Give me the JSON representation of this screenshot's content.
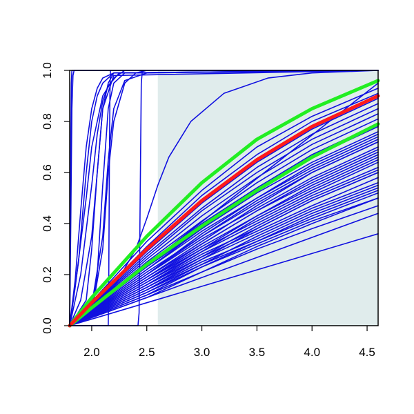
{
  "chart_data": {
    "type": "line",
    "title": "",
    "xlabel": "",
    "ylabel": "",
    "xlim": [
      1.8,
      4.6
    ],
    "ylim": [
      0.0,
      1.0
    ],
    "x_ticks": [
      2.0,
      2.5,
      3.0,
      3.5,
      4.0,
      4.5
    ],
    "x_tick_labels": [
      "2.0",
      "2.5",
      "3.0",
      "3.5",
      "4.0",
      "4.5"
    ],
    "y_ticks": [
      0.0,
      0.2,
      0.4,
      0.6,
      0.8,
      1.0
    ],
    "y_tick_labels": [
      "0.0",
      "0.2",
      "0.4",
      "0.6",
      "0.8",
      "1.0"
    ],
    "grid": false,
    "legend": "none",
    "shaded_region": {
      "x_from": 2.6,
      "x_to": 4.6,
      "color": "#e0ecec"
    },
    "colors": {
      "samples": "#1010e0",
      "median": "#ff1a1a",
      "bounds": "#22ee22",
      "shade": "#e0ecec"
    },
    "series": [
      {
        "role": "median",
        "x": [
          1.8,
          2.0,
          2.5,
          3.0,
          3.5,
          4.0,
          4.6
        ],
        "y": [
          0.0,
          0.09,
          0.3,
          0.49,
          0.65,
          0.78,
          0.9
        ]
      },
      {
        "role": "bound",
        "x": [
          1.8,
          2.0,
          2.5,
          3.0,
          3.5,
          4.0,
          4.6
        ],
        "y": [
          0.0,
          0.11,
          0.35,
          0.56,
          0.73,
          0.85,
          0.96
        ]
      },
      {
        "role": "bound",
        "x": [
          1.8,
          2.0,
          2.5,
          3.0,
          3.5,
          4.0,
          4.6
        ],
        "y": [
          0.0,
          0.07,
          0.24,
          0.39,
          0.53,
          0.66,
          0.79
        ]
      },
      {
        "role": "sample",
        "x": [
          1.8,
          1.805,
          1.81,
          1.815,
          1.82,
          1.83,
          4.6
        ],
        "y": [
          0.0,
          0.3,
          0.7,
          0.95,
          1.0,
          1.0,
          1.0
        ]
      },
      {
        "role": "sample",
        "x": [
          1.8,
          1.81,
          1.82,
          1.83,
          1.84,
          4.6
        ],
        "y": [
          0.0,
          0.4,
          0.85,
          0.98,
          1.0,
          1.0
        ]
      },
      {
        "role": "sample",
        "x": [
          1.8,
          1.85,
          1.9,
          1.95,
          2.0,
          2.05,
          2.1,
          2.2,
          4.6
        ],
        "y": [
          0.0,
          0.18,
          0.45,
          0.7,
          0.85,
          0.93,
          0.97,
          0.99,
          1.0
        ]
      },
      {
        "role": "sample",
        "x": [
          1.8,
          1.88,
          1.95,
          2.0,
          2.05,
          2.1,
          2.2,
          4.6
        ],
        "y": [
          0.0,
          0.25,
          0.6,
          0.8,
          0.9,
          0.95,
          0.99,
          1.0
        ]
      },
      {
        "role": "sample",
        "x": [
          1.8,
          1.9,
          2.0,
          2.05,
          2.1,
          2.15,
          2.25,
          4.6
        ],
        "y": [
          0.0,
          0.2,
          0.55,
          0.75,
          0.88,
          0.94,
          0.99,
          1.0
        ]
      },
      {
        "role": "sample",
        "x": [
          1.8,
          1.85,
          1.95,
          2.0,
          2.1,
          2.2,
          2.3,
          4.6
        ],
        "y": [
          0.0,
          0.15,
          0.5,
          0.7,
          0.9,
          0.97,
          1.0,
          1.0
        ]
      },
      {
        "role": "sample",
        "x": [
          1.8,
          1.9,
          2.0,
          2.05,
          2.1,
          2.2,
          4.6
        ],
        "y": [
          0.0,
          0.1,
          0.35,
          0.6,
          0.85,
          0.98,
          1.0
        ]
      },
      {
        "role": "sample",
        "x": [
          1.8,
          1.95,
          2.0,
          2.05,
          2.1,
          2.15,
          2.2,
          4.6
        ],
        "y": [
          0.0,
          0.1,
          0.3,
          0.6,
          0.85,
          0.95,
          0.99,
          1.0
        ]
      },
      {
        "role": "sample",
        "x": [
          1.8,
          2.0,
          2.05,
          2.1,
          2.15,
          2.2,
          2.3,
          4.6
        ],
        "y": [
          0.0,
          0.06,
          0.2,
          0.55,
          0.85,
          0.95,
          0.99,
          1.0
        ]
      },
      {
        "role": "sample",
        "x": [
          1.8,
          2.0,
          2.1,
          2.15,
          2.2,
          2.3,
          2.5,
          4.6
        ],
        "y": [
          0.0,
          0.08,
          0.35,
          0.65,
          0.85,
          0.96,
          0.99,
          1.0
        ]
      },
      {
        "role": "sample",
        "x": [
          1.8,
          2.15,
          2.155,
          2.16,
          2.165,
          2.17,
          4.6
        ],
        "y": [
          0.0,
          0.0,
          0.2,
          0.6,
          0.9,
          1.0,
          1.0
        ]
      },
      {
        "role": "sample",
        "x": [
          1.8,
          2.42,
          2.43,
          2.44,
          2.45,
          2.46,
          4.6
        ],
        "y": [
          0.0,
          0.0,
          0.05,
          0.5,
          0.95,
          1.0,
          1.0
        ]
      },
      {
        "role": "sample",
        "x": [
          1.8,
          2.0,
          2.1,
          2.15,
          2.2,
          2.3,
          2.4,
          2.5,
          4.6
        ],
        "y": [
          0.0,
          0.05,
          0.3,
          0.6,
          0.8,
          0.95,
          0.99,
          1.0,
          1.0
        ]
      },
      {
        "role": "sample",
        "x": [
          1.8,
          2.2,
          2.4,
          2.5,
          2.6,
          2.7,
          2.9,
          3.2,
          3.6,
          4.0,
          4.6
        ],
        "y": [
          0.0,
          0.15,
          0.3,
          0.42,
          0.55,
          0.66,
          0.8,
          0.91,
          0.97,
          0.99,
          1.0
        ]
      },
      {
        "role": "sample",
        "x": [
          1.8,
          4.6
        ],
        "y": [
          0.0,
          0.95
        ]
      },
      {
        "role": "sample",
        "x": [
          1.8,
          2.5,
          3.0,
          3.5,
          4.0,
          4.6
        ],
        "y": [
          0.0,
          0.33,
          0.53,
          0.7,
          0.82,
          0.93
        ]
      },
      {
        "role": "sample",
        "x": [
          1.8,
          2.5,
          3.0,
          3.5,
          4.0,
          4.6
        ],
        "y": [
          0.0,
          0.31,
          0.51,
          0.67,
          0.8,
          0.91
        ]
      },
      {
        "role": "sample",
        "x": [
          1.8,
          2.5,
          3.0,
          3.5,
          4.0,
          4.6
        ],
        "y": [
          0.0,
          0.29,
          0.48,
          0.64,
          0.77,
          0.89
        ]
      },
      {
        "role": "sample",
        "x": [
          1.8,
          2.5,
          3.0,
          3.5,
          4.0,
          4.6
        ],
        "y": [
          0.0,
          0.28,
          0.46,
          0.62,
          0.75,
          0.87
        ]
      },
      {
        "role": "sample",
        "x": [
          1.8,
          2.5,
          3.0,
          3.5,
          4.0,
          4.6
        ],
        "y": [
          0.0,
          0.27,
          0.45,
          0.6,
          0.73,
          0.85
        ]
      },
      {
        "role": "sample",
        "x": [
          1.8,
          2.5,
          3.0,
          3.5,
          4.0,
          4.6
        ],
        "y": [
          0.0,
          0.26,
          0.43,
          0.58,
          0.71,
          0.83
        ]
      },
      {
        "role": "sample",
        "x": [
          1.8,
          2.5,
          3.0,
          3.5,
          4.0,
          4.6
        ],
        "y": [
          0.0,
          0.25,
          0.41,
          0.56,
          0.69,
          0.81
        ]
      },
      {
        "role": "sample",
        "x": [
          1.8,
          2.5,
          3.0,
          3.5,
          4.0,
          4.6
        ],
        "y": [
          0.0,
          0.24,
          0.4,
          0.54,
          0.67,
          0.79
        ]
      },
      {
        "role": "sample",
        "x": [
          1.8,
          2.5,
          3.0,
          3.5,
          4.0,
          4.6
        ],
        "y": [
          0.0,
          0.23,
          0.38,
          0.52,
          0.64,
          0.76
        ]
      },
      {
        "role": "sample",
        "x": [
          1.8,
          2.5,
          3.0,
          3.5,
          4.0,
          4.6
        ],
        "y": [
          0.0,
          0.22,
          0.37,
          0.5,
          0.62,
          0.74
        ]
      },
      {
        "role": "sample",
        "x": [
          1.8,
          2.5,
          3.0,
          3.5,
          4.0,
          4.6
        ],
        "y": [
          0.0,
          0.21,
          0.35,
          0.48,
          0.6,
          0.72
        ]
      },
      {
        "role": "sample",
        "x": [
          1.8,
          2.5,
          3.0,
          3.5,
          4.0,
          4.6
        ],
        "y": [
          0.0,
          0.2,
          0.34,
          0.46,
          0.58,
          0.7
        ]
      },
      {
        "role": "sample",
        "x": [
          1.8,
          2.5,
          3.0,
          3.5,
          4.0,
          4.6
        ],
        "y": [
          0.0,
          0.19,
          0.32,
          0.45,
          0.56,
          0.68
        ]
      },
      {
        "role": "sample",
        "x": [
          1.8,
          2.5,
          3.0,
          3.5,
          4.0,
          4.6
        ],
        "y": [
          0.0,
          0.18,
          0.31,
          0.43,
          0.54,
          0.66
        ]
      },
      {
        "role": "sample",
        "x": [
          1.8,
          2.5,
          3.0,
          3.5,
          4.0,
          4.6
        ],
        "y": [
          0.0,
          0.18,
          0.3,
          0.41,
          0.52,
          0.64
        ]
      },
      {
        "role": "sample",
        "x": [
          1.8,
          2.5,
          3.0,
          3.5,
          4.0,
          4.6
        ],
        "y": [
          0.0,
          0.17,
          0.29,
          0.4,
          0.51,
          0.62
        ]
      },
      {
        "role": "sample",
        "x": [
          1.8,
          2.5,
          3.0,
          3.5,
          4.0,
          4.6
        ],
        "y": [
          0.0,
          0.16,
          0.28,
          0.38,
          0.49,
          0.6
        ]
      },
      {
        "role": "sample",
        "x": [
          1.8,
          2.5,
          3.0,
          3.5,
          4.0,
          4.6
        ],
        "y": [
          0.0,
          0.16,
          0.27,
          0.37,
          0.47,
          0.58
        ]
      },
      {
        "role": "sample",
        "x": [
          1.8,
          2.5,
          3.0,
          3.5,
          4.0,
          4.6
        ],
        "y": [
          0.0,
          0.15,
          0.26,
          0.36,
          0.46,
          0.56
        ]
      },
      {
        "role": "sample",
        "x": [
          1.8,
          2.5,
          3.0,
          3.5,
          4.0,
          4.6
        ],
        "y": [
          0.0,
          0.14,
          0.25,
          0.34,
          0.44,
          0.54
        ]
      },
      {
        "role": "sample",
        "x": [
          1.8,
          2.5,
          3.0,
          3.5,
          4.0,
          4.6
        ],
        "y": [
          0.0,
          0.14,
          0.24,
          0.33,
          0.42,
          0.52
        ]
      },
      {
        "role": "sample",
        "x": [
          1.8,
          2.5,
          3.0,
          3.5,
          4.0,
          4.6
        ],
        "y": [
          0.0,
          0.13,
          0.23,
          0.32,
          0.41,
          0.5
        ]
      },
      {
        "role": "sample",
        "x": [
          1.8,
          2.5,
          3.0,
          3.5,
          4.0,
          4.6
        ],
        "y": [
          0.0,
          0.12,
          0.21,
          0.3,
          0.38,
          0.47
        ]
      },
      {
        "role": "sample",
        "x": [
          1.8,
          4.6
        ],
        "y": [
          0.0,
          0.44
        ]
      },
      {
        "role": "sample",
        "x": [
          1.8,
          4.6
        ],
        "y": [
          0.0,
          0.36
        ]
      },
      {
        "role": "sample",
        "x": [
          1.8,
          2.5,
          3.0,
          3.5,
          4.0,
          4.6
        ],
        "y": [
          0.0,
          0.2,
          0.36,
          0.5,
          0.63,
          0.75
        ]
      },
      {
        "role": "sample",
        "x": [
          1.8,
          2.5,
          3.0,
          3.5,
          4.0,
          4.6
        ],
        "y": [
          0.0,
          0.19,
          0.33,
          0.47,
          0.6,
          0.72
        ]
      },
      {
        "role": "sample",
        "x": [
          1.8,
          2.5,
          3.0,
          3.5,
          4.0,
          4.6
        ],
        "y": [
          0.0,
          0.17,
          0.3,
          0.43,
          0.55,
          0.67
        ]
      },
      {
        "role": "sample",
        "x": [
          1.8,
          2.5,
          3.0,
          3.5,
          4.0,
          4.6
        ],
        "y": [
          0.0,
          0.15,
          0.27,
          0.39,
          0.5,
          0.61
        ]
      },
      {
        "role": "sample",
        "x": [
          1.8,
          2.5,
          3.0,
          3.5,
          4.0,
          4.6
        ],
        "y": [
          0.0,
          0.13,
          0.24,
          0.35,
          0.45,
          0.55
        ]
      },
      {
        "role": "sample",
        "x": [
          1.8,
          2.5,
          3.0,
          3.5,
          4.0,
          4.6
        ],
        "y": [
          0.0,
          0.22,
          0.38,
          0.53,
          0.66,
          0.78
        ]
      },
      {
        "role": "sample",
        "x": [
          1.8,
          2.5,
          3.0,
          3.5,
          4.0,
          4.6
        ],
        "y": [
          0.0,
          0.2,
          0.35,
          0.49,
          0.61,
          0.73
        ]
      },
      {
        "role": "sample",
        "x": [
          1.8,
          2.5,
          3.0,
          3.5,
          4.0,
          4.6
        ],
        "y": [
          0.0,
          0.18,
          0.32,
          0.45,
          0.57,
          0.69
        ]
      },
      {
        "role": "sample",
        "x": [
          1.8,
          2.5,
          3.0,
          3.5,
          4.0,
          4.6
        ],
        "y": [
          0.0,
          0.16,
          0.29,
          0.42,
          0.53,
          0.65
        ]
      },
      {
        "role": "sample",
        "x": [
          1.8,
          2.5,
          3.0,
          3.5,
          4.0,
          4.6
        ],
        "y": [
          0.0,
          0.14,
          0.26,
          0.38,
          0.49,
          0.6
        ]
      },
      {
        "role": "sample",
        "x": [
          1.8,
          2.5,
          3.0,
          3.5,
          4.0,
          4.6
        ],
        "y": [
          0.0,
          0.12,
          0.23,
          0.33,
          0.43,
          0.53
        ]
      },
      {
        "role": "sample",
        "x": [
          1.8,
          2.5,
          3.0,
          3.5,
          4.0,
          4.6
        ],
        "y": [
          0.0,
          0.11,
          0.21,
          0.31,
          0.4,
          0.5
        ]
      }
    ]
  }
}
